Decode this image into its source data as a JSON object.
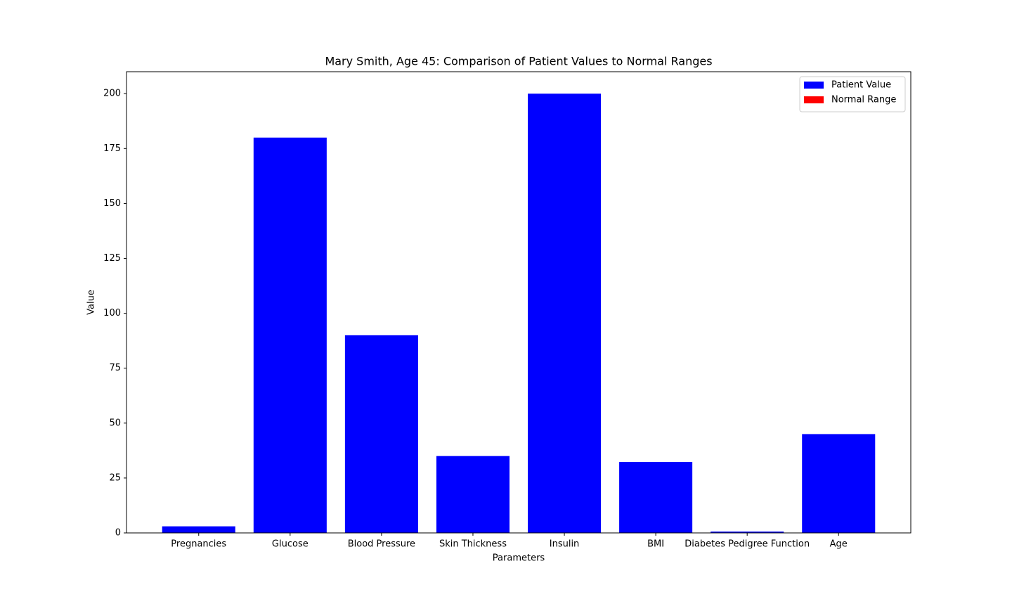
{
  "chart_data": {
    "type": "bar",
    "title": "Mary Smith, Age 45: Comparison of Patient Values to Normal Ranges",
    "x_label": "Parameters",
    "y_label": "Value",
    "categories": [
      "Pregnancies",
      "Glucose",
      "Blood Pressure",
      "Skin Thickness",
      "Insulin",
      "BMI",
      "Diabetes Pedigree Function",
      "Age"
    ],
    "series": [
      {
        "name": "Normal Range",
        "color": "#ff0000",
        "values": [
          null,
          null,
          null,
          null,
          null,
          null,
          null,
          null
        ]
      },
      {
        "name": "Patient Value",
        "color": "#0000ff",
        "values": [
          3,
          180,
          90,
          35,
          200,
          32.3,
          0.6,
          45
        ]
      }
    ],
    "legend_order": [
      1,
      0
    ],
    "legend": "upper right",
    "ylim": [
      0,
      210
    ],
    "yticks": [
      0,
      25,
      50,
      75,
      100,
      125,
      150,
      175,
      200
    ],
    "grid": false
  }
}
